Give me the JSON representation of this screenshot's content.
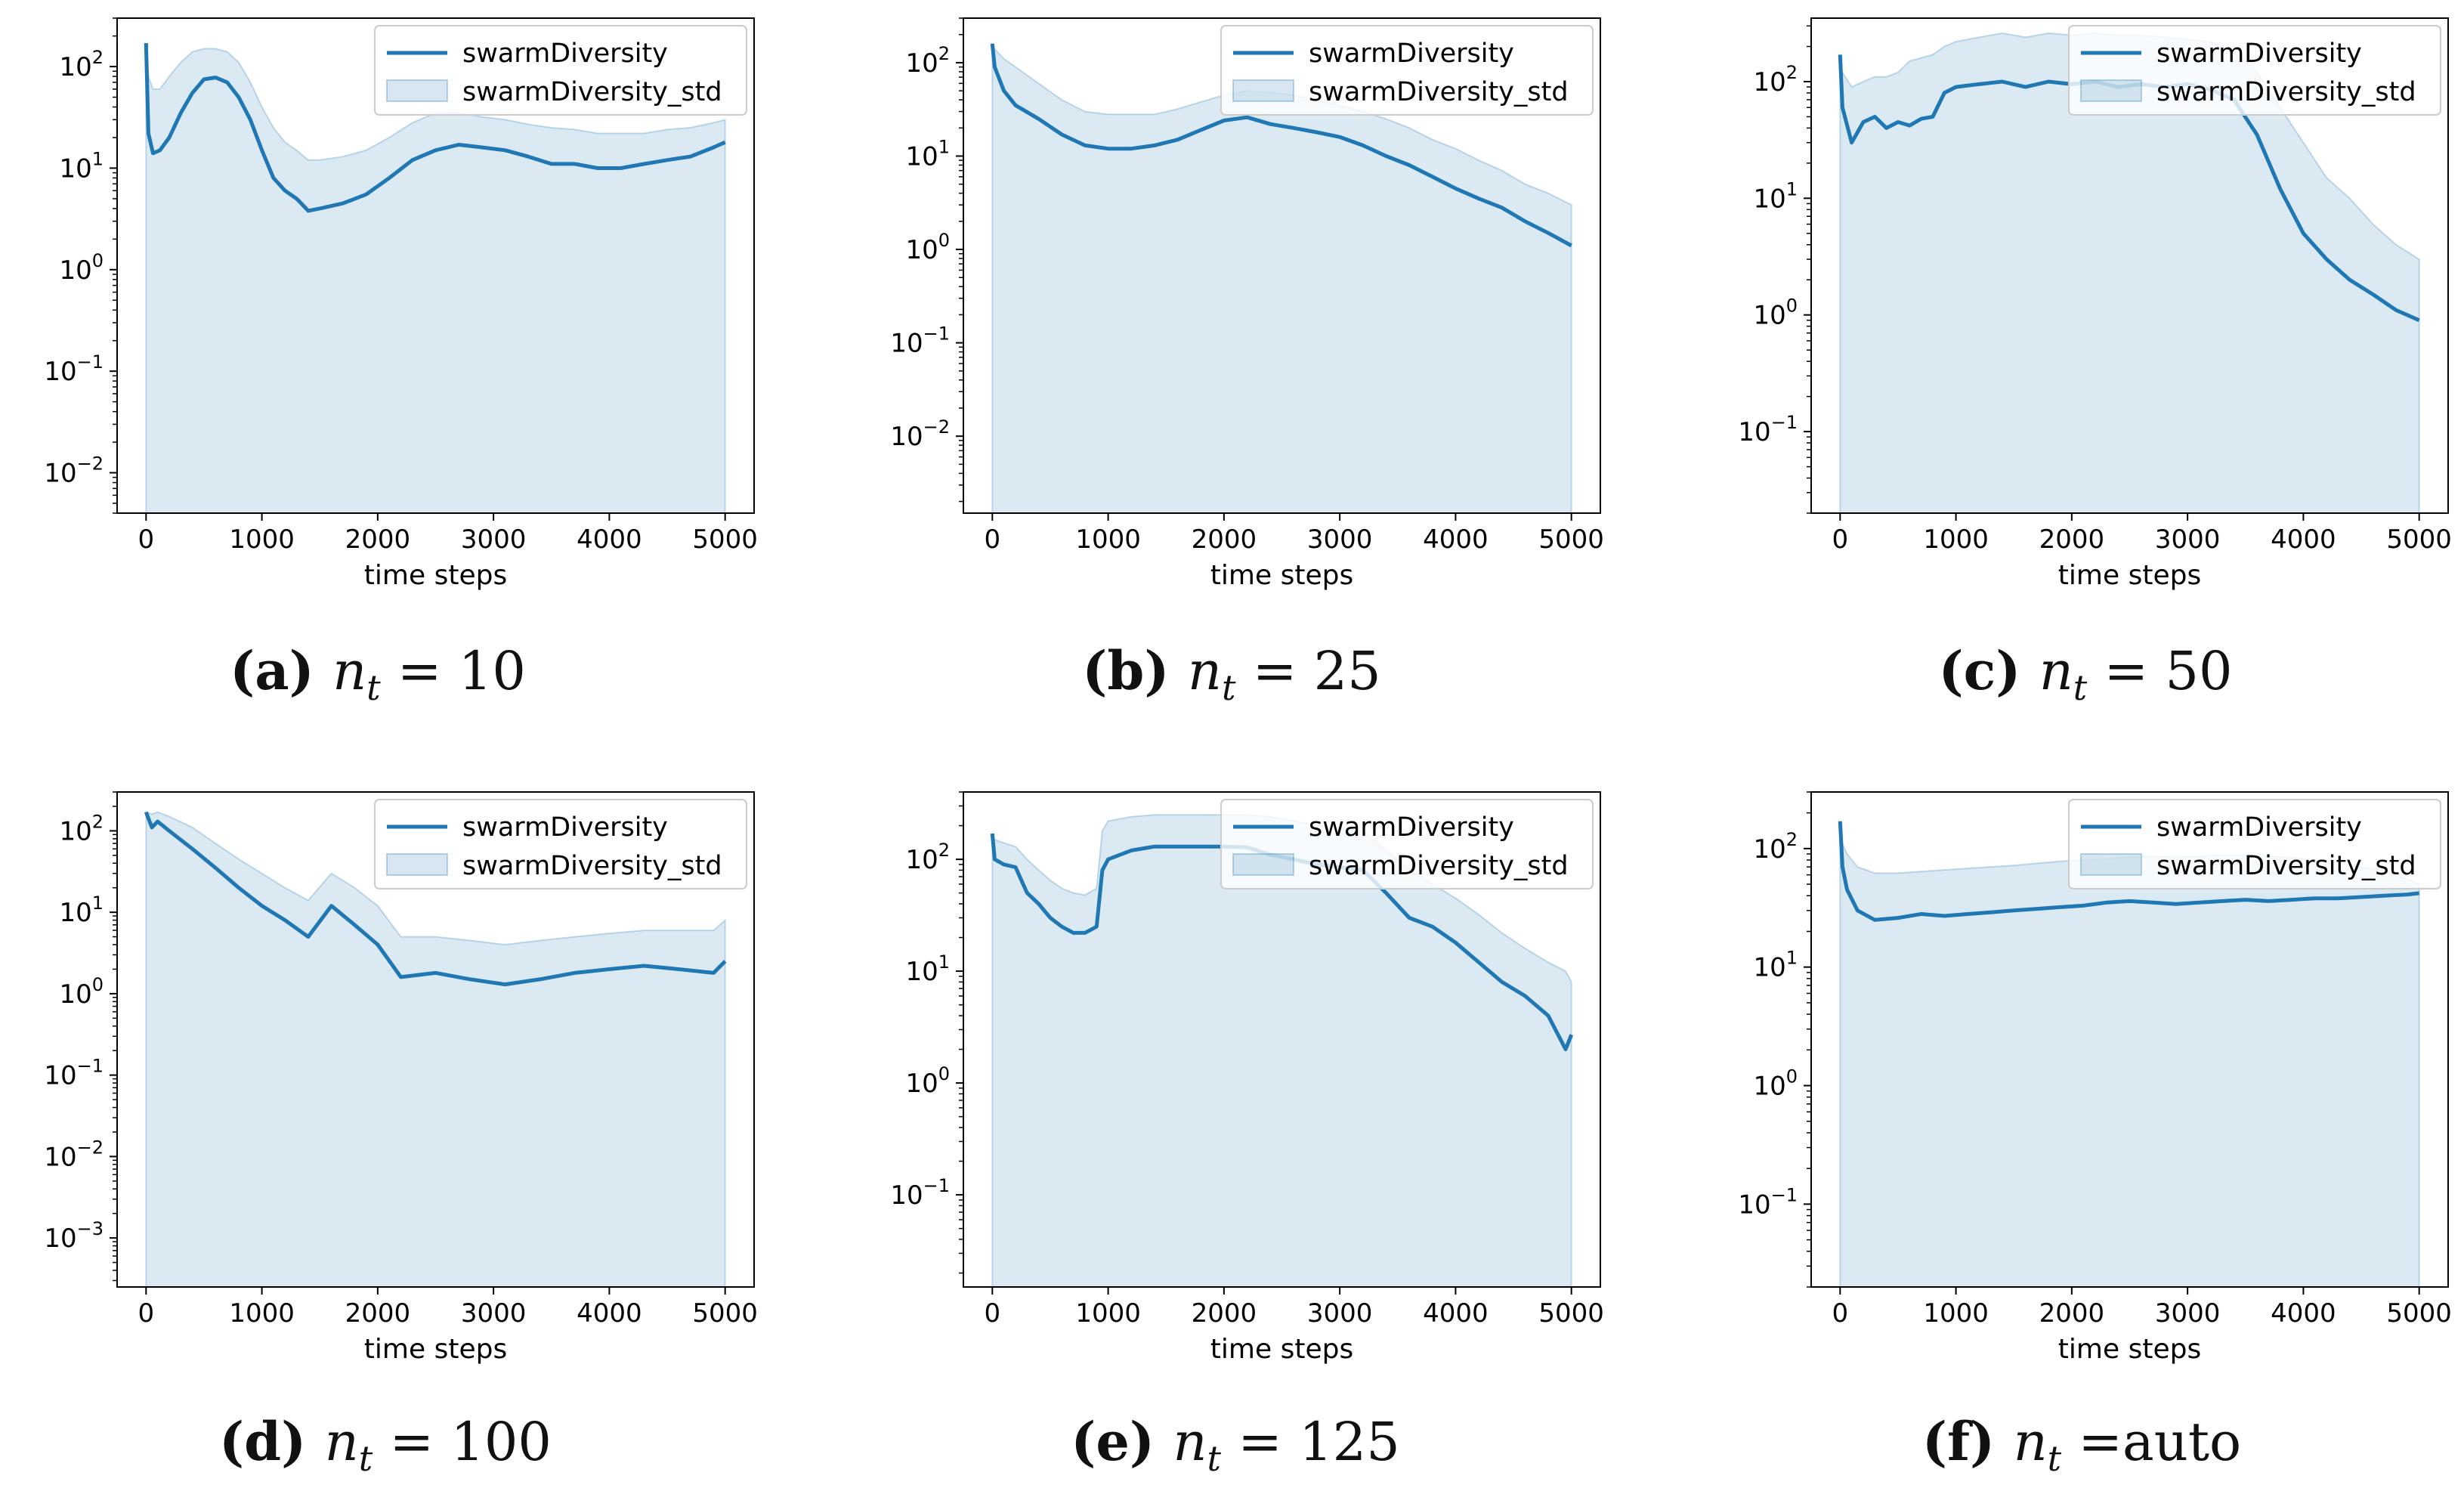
{
  "chart_data": [
    {
      "type": "line",
      "caption": {
        "letter": "(a)",
        "var": "n",
        "sub": "t",
        "rest": " = 10"
      },
      "xlabel": "time steps",
      "yscale": "log",
      "xlim": [
        0,
        5000
      ],
      "ylim": [
        0.004,
        300
      ],
      "xticks": [
        "0",
        "1000",
        "2000",
        "3000",
        "4000",
        "5000"
      ],
      "xtick_values": [
        0,
        1000,
        2000,
        3000,
        4000,
        5000
      ],
      "yticks": [
        {
          "base": "10",
          "exp": "2",
          "value": 100
        },
        {
          "base": "10",
          "exp": "1",
          "value": 10
        },
        {
          "base": "10",
          "exp": "0",
          "value": 1
        },
        {
          "base": "10",
          "exp": "−1",
          "value": 0.1
        },
        {
          "base": "10",
          "exp": "−2",
          "value": 0.01
        }
      ],
      "legend": {
        "position": "upper right",
        "line_label": "swarmDiversity",
        "band_label": "swarmDiversity_std"
      },
      "series": [
        {
          "name": "swarmDiversity",
          "x": [
            0,
            20,
            60,
            120,
            200,
            300,
            400,
            500,
            600,
            700,
            800,
            900,
            1000,
            1100,
            1200,
            1300,
            1400,
            1500,
            1700,
            1900,
            2100,
            2300,
            2500,
            2700,
            2900,
            3100,
            3300,
            3500,
            3700,
            3900,
            4100,
            4300,
            4500,
            4700,
            4900,
            5000
          ],
          "y": [
            170,
            22,
            14,
            15,
            20,
            35,
            55,
            75,
            78,
            70,
            50,
            30,
            15,
            8,
            6,
            5,
            3.8,
            4,
            4.5,
            5.5,
            8,
            12,
            15,
            17,
            16,
            15,
            13,
            11,
            11,
            10,
            10,
            11,
            12,
            13,
            16,
            18
          ],
          "upper": [
            170,
            80,
            60,
            60,
            80,
            110,
            140,
            150,
            150,
            140,
            110,
            70,
            40,
            25,
            18,
            15,
            12,
            12,
            13,
            15,
            20,
            28,
            35,
            35,
            32,
            30,
            27,
            25,
            24,
            22,
            22,
            22,
            24,
            25,
            28,
            30
          ]
        }
      ]
    },
    {
      "type": "line",
      "caption": {
        "letter": "(b)",
        "var": "n",
        "sub": "t",
        "rest": " = 25"
      },
      "xlabel": "time steps",
      "yscale": "log",
      "xlim": [
        0,
        5000
      ],
      "ylim": [
        0.0015,
        300
      ],
      "xticks": [
        "0",
        "1000",
        "2000",
        "3000",
        "4000",
        "5000"
      ],
      "xtick_values": [
        0,
        1000,
        2000,
        3000,
        4000,
        5000
      ],
      "yticks": [
        {
          "base": "10",
          "exp": "2",
          "value": 100
        },
        {
          "base": "10",
          "exp": "1",
          "value": 10
        },
        {
          "base": "10",
          "exp": "0",
          "value": 1
        },
        {
          "base": "10",
          "exp": "−1",
          "value": 0.1
        },
        {
          "base": "10",
          "exp": "−2",
          "value": 0.01
        }
      ],
      "legend": {
        "position": "upper right",
        "line_label": "swarmDiversity",
        "band_label": "swarmDiversity_std"
      },
      "series": [
        {
          "name": "swarmDiversity",
          "x": [
            0,
            20,
            100,
            200,
            400,
            600,
            800,
            1000,
            1200,
            1400,
            1600,
            1800,
            2000,
            2200,
            2400,
            2600,
            2800,
            3000,
            3200,
            3400,
            3600,
            3800,
            4000,
            4200,
            4400,
            4600,
            4800,
            5000
          ],
          "y": [
            160,
            90,
            50,
            35,
            25,
            17,
            13,
            12,
            12,
            13,
            15,
            19,
            24,
            26,
            22,
            20,
            18,
            16,
            13,
            10,
            8,
            6,
            4.5,
            3.5,
            2.8,
            2,
            1.5,
            1.1
          ],
          "upper": [
            160,
            140,
            110,
            90,
            60,
            40,
            30,
            28,
            28,
            28,
            32,
            38,
            45,
            50,
            48,
            45,
            40,
            35,
            30,
            25,
            20,
            15,
            12,
            9,
            7,
            5,
            4,
            3
          ]
        }
      ]
    },
    {
      "type": "line",
      "caption": {
        "letter": "(c)",
        "var": "n",
        "sub": "t",
        "rest": " = 50"
      },
      "xlabel": "time steps",
      "yscale": "log",
      "xlim": [
        0,
        5000
      ],
      "ylim": [
        0.02,
        350
      ],
      "xticks": [
        "0",
        "1000",
        "2000",
        "3000",
        "4000",
        "5000"
      ],
      "xtick_values": [
        0,
        1000,
        2000,
        3000,
        4000,
        5000
      ],
      "yticks": [
        {
          "base": "10",
          "exp": "2",
          "value": 100
        },
        {
          "base": "10",
          "exp": "1",
          "value": 10
        },
        {
          "base": "10",
          "exp": "0",
          "value": 1
        },
        {
          "base": "10",
          "exp": "−1",
          "value": 0.1
        }
      ],
      "legend": {
        "position": "upper right",
        "line_label": "swarmDiversity",
        "band_label": "swarmDiversity_std"
      },
      "series": [
        {
          "name": "swarmDiversity",
          "x": [
            0,
            20,
            100,
            200,
            300,
            400,
            500,
            600,
            700,
            800,
            900,
            1000,
            1200,
            1400,
            1600,
            1800,
            2000,
            2200,
            2400,
            2600,
            2800,
            3000,
            3200,
            3400,
            3600,
            3800,
            4000,
            4200,
            4400,
            4600,
            4800,
            5000
          ],
          "y": [
            170,
            60,
            30,
            45,
            50,
            40,
            45,
            42,
            48,
            50,
            80,
            90,
            95,
            100,
            90,
            100,
            95,
            100,
            90,
            95,
            90,
            95,
            85,
            70,
            35,
            12,
            5,
            3,
            2,
            1.5,
            1.1,
            0.9
          ],
          "upper": [
            170,
            120,
            90,
            100,
            110,
            110,
            120,
            150,
            160,
            170,
            200,
            220,
            240,
            260,
            240,
            260,
            250,
            260,
            250,
            250,
            240,
            230,
            220,
            180,
            120,
            60,
            30,
            15,
            10,
            6,
            4,
            3
          ]
        }
      ]
    },
    {
      "type": "line",
      "caption": {
        "letter": "(d)",
        "var": "n",
        "sub": "t",
        "rest": " = 100"
      },
      "xlabel": "time steps",
      "yscale": "log",
      "xlim": [
        0,
        5000
      ],
      "ylim": [
        0.00025,
        300
      ],
      "xticks": [
        "0",
        "1000",
        "2000",
        "3000",
        "4000",
        "5000"
      ],
      "xtick_values": [
        0,
        1000,
        2000,
        3000,
        4000,
        5000
      ],
      "yticks": [
        {
          "base": "10",
          "exp": "2",
          "value": 100
        },
        {
          "base": "10",
          "exp": "1",
          "value": 10
        },
        {
          "base": "10",
          "exp": "0",
          "value": 1
        },
        {
          "base": "10",
          "exp": "−1",
          "value": 0.1
        },
        {
          "base": "10",
          "exp": "−2",
          "value": 0.01
        },
        {
          "base": "10",
          "exp": "−3",
          "value": 0.001
        }
      ],
      "legend": {
        "position": "upper right",
        "line_label": "swarmDiversity",
        "band_label": "swarmDiversity_std"
      },
      "series": [
        {
          "name": "swarmDiversity",
          "x": [
            0,
            50,
            100,
            200,
            400,
            600,
            800,
            1000,
            1200,
            1400,
            1600,
            1800,
            2000,
            2200,
            2500,
            2800,
            3100,
            3400,
            3700,
            4000,
            4300,
            4600,
            4900,
            5000
          ],
          "y": [
            170,
            110,
            130,
            100,
            60,
            35,
            20,
            12,
            8,
            5,
            12,
            7,
            4,
            1.6,
            1.8,
            1.5,
            1.3,
            1.5,
            1.8,
            2,
            2.2,
            2,
            1.8,
            2.5
          ],
          "upper": [
            170,
            160,
            170,
            150,
            110,
            70,
            45,
            30,
            20,
            14,
            30,
            20,
            12,
            5,
            5,
            4.5,
            4,
            4.5,
            5,
            5.5,
            6,
            6,
            6,
            8
          ]
        }
      ]
    },
    {
      "type": "line",
      "caption": {
        "letter": "(e)",
        "var": "n",
        "sub": "t",
        "rest": " = 125"
      },
      "xlabel": "time steps",
      "yscale": "log",
      "xlim": [
        0,
        5000
      ],
      "ylim": [
        0.015,
        400
      ],
      "xticks": [
        "0",
        "1000",
        "2000",
        "3000",
        "4000",
        "5000"
      ],
      "xtick_values": [
        0,
        1000,
        2000,
        3000,
        4000,
        5000
      ],
      "yticks": [
        {
          "base": "10",
          "exp": "2",
          "value": 100
        },
        {
          "base": "10",
          "exp": "1",
          "value": 10
        },
        {
          "base": "10",
          "exp": "0",
          "value": 1
        },
        {
          "base": "10",
          "exp": "−1",
          "value": 0.1
        }
      ],
      "legend": {
        "position": "upper right",
        "line_label": "swarmDiversity",
        "band_label": "swarmDiversity_std"
      },
      "series": [
        {
          "name": "swarmDiversity",
          "x": [
            0,
            20,
            100,
            200,
            300,
            400,
            500,
            600,
            700,
            800,
            900,
            950,
            1000,
            1200,
            1400,
            1600,
            1800,
            2000,
            2200,
            2400,
            2600,
            2800,
            3000,
            3200,
            3400,
            3600,
            3800,
            4000,
            4200,
            4400,
            4600,
            4800,
            4950,
            5000
          ],
          "y": [
            170,
            100,
            90,
            85,
            50,
            40,
            30,
            25,
            22,
            22,
            25,
            80,
            100,
            120,
            130,
            130,
            130,
            130,
            128,
            110,
            100,
            90,
            85,
            80,
            50,
            30,
            25,
            18,
            12,
            8,
            6,
            4,
            2,
            2.7
          ],
          "upper": [
            170,
            150,
            140,
            130,
            100,
            80,
            65,
            55,
            50,
            48,
            55,
            180,
            220,
            240,
            250,
            250,
            250,
            250,
            250,
            240,
            220,
            200,
            190,
            180,
            120,
            80,
            60,
            45,
            32,
            22,
            16,
            12,
            10,
            8
          ]
        }
      ]
    },
    {
      "type": "line",
      "caption": {
        "letter": "(f)",
        "var": "n",
        "sub": "t",
        "rest": " =auto"
      },
      "xlabel": "time steps",
      "yscale": "log",
      "xlim": [
        0,
        5000
      ],
      "ylim": [
        0.02,
        300
      ],
      "xticks": [
        "0",
        "1000",
        "2000",
        "3000",
        "4000",
        "5000"
      ],
      "xtick_values": [
        0,
        1000,
        2000,
        3000,
        4000,
        5000
      ],
      "yticks": [
        {
          "base": "10",
          "exp": "2",
          "value": 100
        },
        {
          "base": "10",
          "exp": "1",
          "value": 10
        },
        {
          "base": "10",
          "exp": "0",
          "value": 1
        },
        {
          "base": "10",
          "exp": "−1",
          "value": 0.1
        }
      ],
      "legend": {
        "position": "upper right",
        "line_label": "swarmDiversity",
        "band_label": "swarmDiversity_std"
      },
      "series": [
        {
          "name": "swarmDiversity",
          "x": [
            0,
            20,
            60,
            150,
            300,
            500,
            700,
            900,
            1100,
            1300,
            1500,
            1700,
            1900,
            2100,
            2300,
            2500,
            2700,
            2900,
            3100,
            3300,
            3500,
            3700,
            3900,
            4100,
            4300,
            4500,
            4700,
            4900,
            5000
          ],
          "y": [
            170,
            70,
            45,
            30,
            25,
            26,
            28,
            27,
            28,
            29,
            30,
            31,
            32,
            33,
            35,
            36,
            35,
            34,
            35,
            36,
            37,
            36,
            37,
            38,
            38,
            39,
            40,
            41,
            42
          ],
          "upper": [
            170,
            110,
            90,
            70,
            62,
            62,
            64,
            66,
            68,
            70,
            72,
            75,
            78,
            80,
            82,
            85,
            86,
            85,
            86,
            88,
            88,
            86,
            84,
            80,
            76,
            70,
            64,
            55,
            50
          ]
        }
      ]
    }
  ]
}
